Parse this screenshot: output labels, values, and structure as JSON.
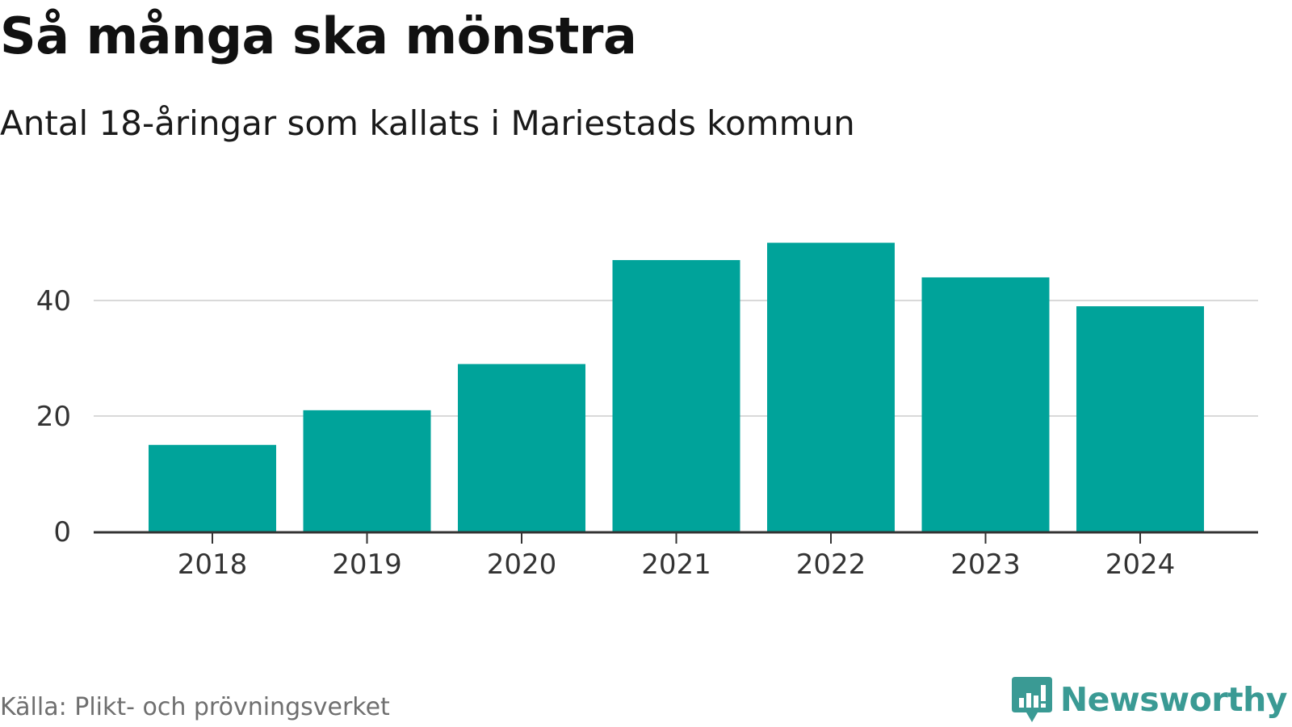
{
  "header": {
    "title": "Så många ska mönstra",
    "subtitle": "Antal 18-åringar som kallats i Mariestads kommun"
  },
  "footer": {
    "source": "Källa: Plikt- och prövningsverket",
    "brand": "Newsworthy",
    "brand_icon": "speech-bubble-bar-chart-icon"
  },
  "colors": {
    "bar": "#00a39a",
    "grid": "#d9d9d9",
    "axis": "#333333",
    "brand": "#3a9a94"
  },
  "chart_data": {
    "type": "bar",
    "title": "Så många ska mönstra",
    "subtitle": "Antal 18-åringar som kallats i Mariestads kommun",
    "categories": [
      "2018",
      "2019",
      "2020",
      "2021",
      "2022",
      "2023",
      "2024"
    ],
    "values": [
      15,
      21,
      29,
      47,
      50,
      44,
      39
    ],
    "xlabel": "",
    "ylabel": "",
    "ylim": [
      0,
      50
    ],
    "yticks": [
      0,
      20,
      40
    ],
    "ytick_labels": [
      "0",
      "20",
      "40"
    ],
    "grid": true,
    "legend": "none"
  }
}
